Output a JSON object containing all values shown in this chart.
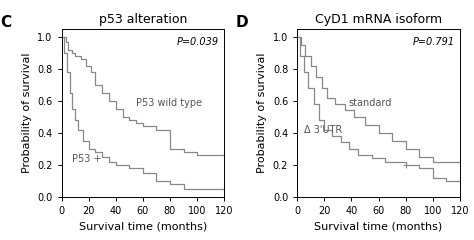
{
  "panel_C": {
    "title": "p53 alteration",
    "label": "C",
    "pvalue": "P=0.039",
    "curves": {
      "wild_type": {
        "label": "P53 wild type",
        "color": "#888888",
        "times": [
          0,
          3,
          5,
          8,
          10,
          14,
          18,
          22,
          25,
          30,
          35,
          40,
          45,
          50,
          55,
          60,
          70,
          80,
          90,
          100,
          110,
          120
        ],
        "surv": [
          1.0,
          0.97,
          0.92,
          0.9,
          0.88,
          0.86,
          0.82,
          0.78,
          0.7,
          0.65,
          0.6,
          0.55,
          0.5,
          0.48,
          0.46,
          0.44,
          0.42,
          0.3,
          0.28,
          0.26,
          0.26,
          0.26
        ],
        "censors": [
          120
        ]
      },
      "p53_plus": {
        "label": "P53 +",
        "color": "#888888",
        "times": [
          0,
          2,
          4,
          6,
          8,
          10,
          12,
          16,
          20,
          25,
          30,
          35,
          40,
          50,
          60,
          70,
          80,
          90,
          100,
          110,
          120
        ],
        "surv": [
          1.0,
          0.9,
          0.78,
          0.65,
          0.55,
          0.48,
          0.42,
          0.35,
          0.3,
          0.28,
          0.25,
          0.22,
          0.2,
          0.18,
          0.15,
          0.1,
          0.08,
          0.05,
          0.05,
          0.05,
          0.05
        ],
        "censors": [
          120
        ]
      }
    }
  },
  "panel_D": {
    "title": "CyD1 mRNA isoform",
    "label": "D",
    "pvalue": "P=0.791",
    "curves": {
      "standard": {
        "label": "standard",
        "color": "#888888",
        "times": [
          0,
          3,
          6,
          10,
          14,
          18,
          22,
          28,
          35,
          42,
          50,
          60,
          70,
          80,
          90,
          100,
          110,
          120
        ],
        "surv": [
          1.0,
          0.95,
          0.88,
          0.82,
          0.75,
          0.68,
          0.62,
          0.58,
          0.54,
          0.5,
          0.45,
          0.4,
          0.35,
          0.3,
          0.25,
          0.22,
          0.22,
          0.22
        ],
        "censors": [
          120
        ]
      },
      "delta_3utr": {
        "label": "Δ 3'UTR",
        "color": "#888888",
        "times": [
          0,
          2,
          5,
          8,
          12,
          16,
          20,
          26,
          32,
          38,
          45,
          55,
          65,
          80,
          90,
          100,
          110,
          120
        ],
        "surv": [
          1.0,
          0.88,
          0.78,
          0.68,
          0.58,
          0.48,
          0.42,
          0.38,
          0.34,
          0.3,
          0.26,
          0.24,
          0.22,
          0.2,
          0.18,
          0.12,
          0.1,
          0.1
        ],
        "censors": [
          80,
          120
        ]
      }
    }
  },
  "xlabel": "Survival time (months)",
  "ylabel": "Probability of survival",
  "xlim": [
    0,
    120
  ],
  "ylim": [
    0,
    1.05
  ],
  "xticks": [
    0,
    20,
    40,
    60,
    80,
    100,
    120
  ],
  "yticks": [
    0.0,
    0.2,
    0.4,
    0.6,
    0.8,
    1.0
  ],
  "bg_color": "#ffffff",
  "line_color": "#888888",
  "tick_fontsize": 7,
  "label_fontsize": 8,
  "title_fontsize": 9,
  "annot_fontsize": 7
}
